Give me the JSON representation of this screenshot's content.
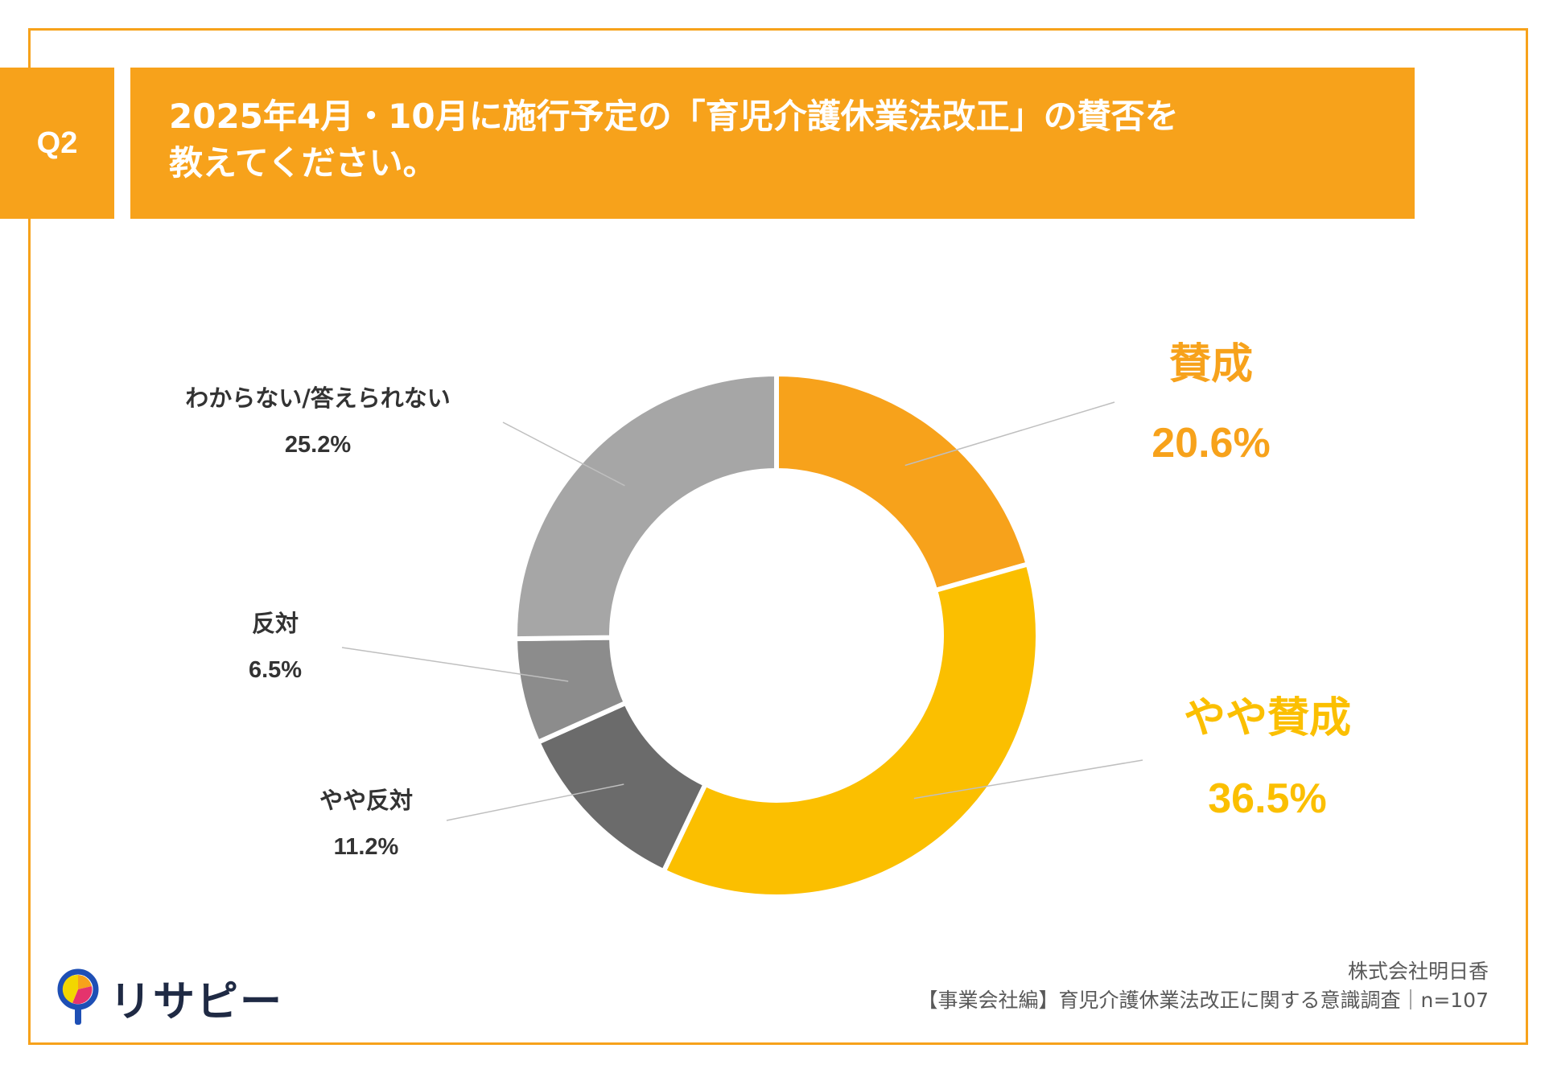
{
  "question": {
    "number": "Q2",
    "title_line1": "2025年4月・10月に施行予定の「育児介護休業法改正」の賛否を",
    "title_line2": "教えてください。"
  },
  "chart_data": {
    "type": "pie",
    "variant": "donut",
    "categories": [
      "賛成",
      "やや賛成",
      "やや反対",
      "反対",
      "わからない/答えられない"
    ],
    "values": [
      20.6,
      36.5,
      11.2,
      6.5,
      25.2
    ],
    "value_labels": [
      "20.6%",
      "36.5%",
      "11.2%",
      "6.5%",
      "25.2%"
    ],
    "colors": [
      "#F7A21B",
      "#FBBF00",
      "#6B6B6B",
      "#8C8C8C",
      "#A6A6A6"
    ],
    "label_colors": [
      "#F7A21B",
      "#FBBF00",
      "#333333",
      "#333333",
      "#333333"
    ],
    "start_angle_deg": 0,
    "direction": "clockwise"
  },
  "footer": {
    "company": "株式会社明日香",
    "source": "【事業会社編】育児介護休業法改正に関する意識調査｜n=107"
  },
  "logo": {
    "text": "リサピー",
    "icon": "magnifier-pin-icon"
  }
}
